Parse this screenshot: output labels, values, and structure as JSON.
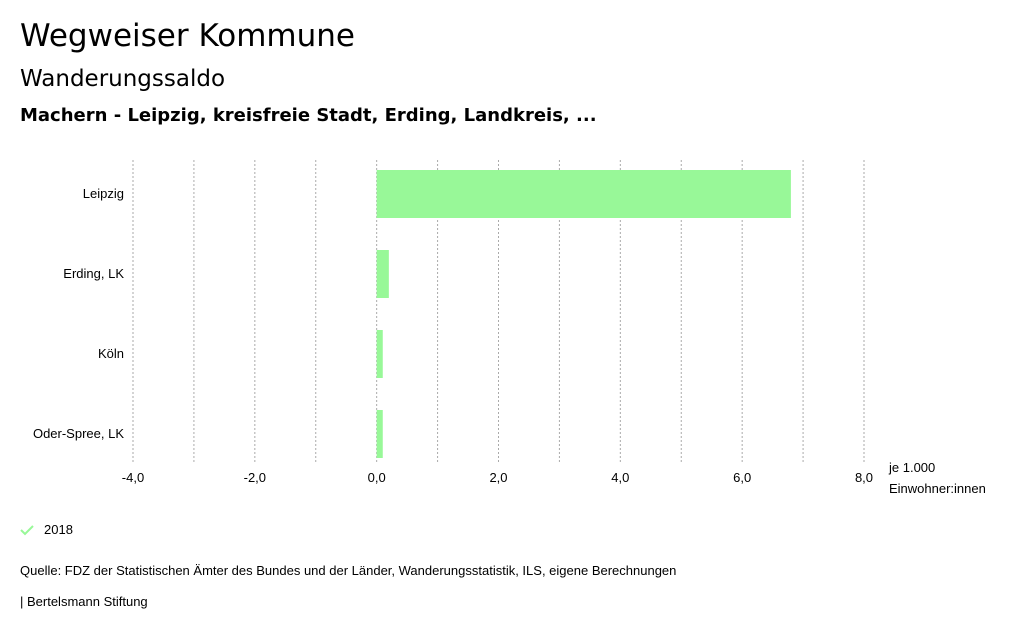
{
  "header": {
    "title": "Wegweiser Kommune",
    "subtitle": "Wanderungssaldo",
    "selection": "Machern - Leipzig, kreisfreie Stadt, Erding, Landkreis, ..."
  },
  "chart_data": {
    "type": "bar",
    "orientation": "horizontal",
    "categories": [
      "Leipzig",
      "Erding, LK",
      "Köln",
      "Oder-Spree, LK"
    ],
    "series": [
      {
        "name": "2018",
        "values": [
          6.8,
          0.2,
          0.1,
          0.1
        ],
        "color": "#98f898"
      }
    ],
    "xlim": [
      -4,
      8
    ],
    "xticks": [
      -4,
      -2,
      0,
      2,
      4,
      6,
      8
    ],
    "xtick_labels": [
      "-4,0",
      "-2,0",
      "0,0",
      "2,0",
      "4,0",
      "6,0",
      "8,0"
    ],
    "unit_label": [
      "je 1.000",
      "Einwohner:innen"
    ],
    "grid": true
  },
  "legend": {
    "label": "2018",
    "icon": "check-icon"
  },
  "footer": {
    "source": "Quelle: FDZ der Statistischen Ämter des Bundes und der Länder, Wanderungsstatistik, ILS, eigene Berechnungen",
    "brand": "| Bertelsmann Stiftung"
  }
}
